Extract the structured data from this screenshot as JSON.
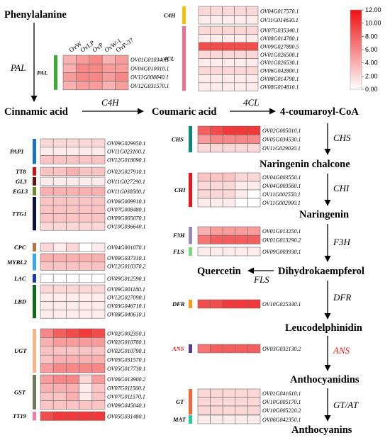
{
  "colors": {
    "low": "#ffffff",
    "high": "#ee1111",
    "grid": "#6a6a6a",
    "ans_label": "#e8201e"
  },
  "compounds": {
    "phenylalanine": "Phenylalanine",
    "cinnamic": "Cinnamic acid",
    "coumaric": "Coumaric acid",
    "coumaroyl": "4-coumaroyl-CoA",
    "naringenin_chalcone": "Naringenin chalcone",
    "naringenin": "Naringenin",
    "dihydrokaempferol": "Dihydrokaempferol",
    "quercetin": "Quercetin",
    "leucodelphinidin": "Leucodelphinidin",
    "anthocyanidins": "Anthocyanidins",
    "anthocyanins": "Anthocyanins"
  },
  "enzymes": {
    "pal": "PAL",
    "c4h": "C4H",
    "fourcl": "4CL",
    "chs": "CHS",
    "chi": "CHI",
    "f3h": "F3H",
    "fls": "FLS",
    "dfr": "DFR",
    "ans": "ANS",
    "gt_at": "GT/AT"
  },
  "columns": [
    "OvW",
    "OvLP",
    "OvP",
    "OvW-1",
    "OvP-37"
  ],
  "legend": {
    "ticks": [
      "12.00",
      "10.00",
      "8.00",
      "6.00",
      "4.00",
      "2.00",
      "0.00"
    ],
    "min": 0,
    "max": 12
  },
  "chart_data": {
    "type": "heatmap",
    "columns": [
      "OvW",
      "OvLP",
      "OvP",
      "OvW-1",
      "OvP-37"
    ],
    "value_range": [
      0,
      12
    ],
    "groups": [
      {
        "label": "PAL",
        "color": "#3aa935",
        "genes": [
          {
            "id": "OV01G010340.1",
            "values": [
              4,
              5,
              6,
              4,
              5
            ]
          },
          {
            "id": "OV04G010010.1",
            "values": [
              4,
              6,
              6,
              5,
              5
            ]
          },
          {
            "id": "OV11G008840.1",
            "values": [
              5,
              6,
              6,
              5,
              6
            ]
          },
          {
            "id": "OV12G031570.1",
            "values": [
              4,
              5,
              5,
              4,
              5
            ]
          }
        ]
      },
      {
        "label": "C4H",
        "color": "#f5c000",
        "genes": [
          {
            "id": "OV04G017570.1",
            "values": [
              2,
              2,
              2,
              2,
              2
            ]
          },
          {
            "id": "OV11G014630.1",
            "values": [
              1,
              1,
              1,
              1,
              1
            ]
          }
        ]
      },
      {
        "label": "4CL",
        "color": "#f07090",
        "genes": [
          {
            "id": "OV07G035340.1",
            "values": [
              2,
              2,
              2,
              2,
              2
            ]
          },
          {
            "id": "OV08G014780.1",
            "values": [
              1,
              1,
              1,
              1,
              1
            ]
          },
          {
            "id": "OV09G027890.5",
            "values": [
              9,
              9,
              9,
              9,
              9
            ]
          },
          {
            "id": "OV01G026500.1",
            "values": [
              2,
              2,
              2,
              2,
              2
            ]
          },
          {
            "id": "OV01G026530.1",
            "values": [
              1,
              1,
              1,
              1,
              1
            ]
          },
          {
            "id": "OV06G042800.1",
            "values": [
              2,
              2,
              2,
              2,
              2
            ]
          },
          {
            "id": "OV08G014790.1",
            "values": [
              1,
              1,
              1,
              1,
              1
            ]
          },
          {
            "id": "OV08G014810.1",
            "values": [
              1,
              1,
              1,
              1,
              1
            ]
          }
        ]
      },
      {
        "label": "PAP1",
        "color": "#1a73c8",
        "genes": [
          {
            "id": "OV09G029950.1",
            "values": [
              2,
              2,
              2,
              2,
              2
            ]
          },
          {
            "id": "OV11G023100.1",
            "values": [
              1,
              1,
              1,
              1,
              1
            ]
          },
          {
            "id": "OV12G018090.1",
            "values": [
              3,
              3,
              3,
              3,
              3
            ]
          }
        ]
      },
      {
        "label": "TT8",
        "color": "#cc1111",
        "genes": [
          {
            "id": "OV02G027910.1",
            "values": [
              3,
              3,
              4,
              3,
              3
            ]
          }
        ]
      },
      {
        "label": "GL3",
        "color": "#6b0f0f",
        "genes": [
          {
            "id": "OV11G027290.1",
            "values": [
              1,
              1,
              1,
              1,
              1
            ]
          }
        ]
      },
      {
        "label": "EGL3",
        "color": "#6b8e23",
        "genes": [
          {
            "id": "OV11G038500.1",
            "values": [
              4,
              4,
              4,
              4,
              4
            ]
          }
        ]
      },
      {
        "label": "TTG1",
        "color": "#0b1240",
        "genes": [
          {
            "id": "OV06G009910.1",
            "values": [
              3,
              3,
              3,
              3,
              3
            ]
          },
          {
            "id": "OV07G008480.1",
            "values": [
              3,
              3,
              3,
              3,
              3
            ]
          },
          {
            "id": "OV09G005070.1",
            "values": [
              3,
              3,
              3,
              3,
              3
            ]
          },
          {
            "id": "OV10G036640.1",
            "values": [
              2,
              2,
              2,
              2,
              2
            ]
          }
        ]
      },
      {
        "label": "CPC",
        "color": "#b8733a",
        "genes": [
          {
            "id": "OV04G001070.1",
            "values": [
              2,
              1,
              2,
              0,
              1
            ]
          }
        ]
      },
      {
        "label": "MYBL2",
        "color": "#3aa8f0",
        "genes": [
          {
            "id": "OV09G037310.1",
            "values": [
              4,
              4,
              4,
              4,
              4
            ]
          },
          {
            "id": "OV12G010370.2",
            "values": [
              3,
              3,
              3,
              3,
              3
            ]
          }
        ]
      },
      {
        "label": "LAC",
        "color": "#1a3aa8",
        "genes": [
          {
            "id": "OV09G012590.1",
            "values": [
              0,
              0,
              0,
              0,
              0
            ]
          }
        ]
      },
      {
        "label": "LBD",
        "color": "#0f6a1a",
        "genes": [
          {
            "id": "OV09G001180.1",
            "values": [
              2,
              2,
              2,
              2,
              2
            ]
          },
          {
            "id": "OV12G027090.1",
            "values": [
              1,
              1,
              1,
              1,
              1
            ]
          },
          {
            "id": "OV03G046710.1",
            "values": [
              1,
              1,
              1,
              1,
              1
            ]
          },
          {
            "id": "OV08G040610.1",
            "values": [
              1,
              1,
              1,
              1,
              1
            ]
          }
        ]
      },
      {
        "label": "UGT",
        "color": "#f5b88a",
        "genes": [
          {
            "id": "OV02G002350.1",
            "values": [
              6,
              8,
              9,
              10,
              9
            ]
          },
          {
            "id": "OV02G010780.1",
            "values": [
              4,
              5,
              5,
              5,
              5
            ]
          },
          {
            "id": "OV02G010790.1",
            "values": [
              3,
              3,
              3,
              3,
              3
            ]
          },
          {
            "id": "OV05G031570.1",
            "values": [
              3,
              4,
              4,
              4,
              4
            ]
          },
          {
            "id": "OV05G017730.1",
            "values": [
              5,
              6,
              6,
              6,
              6
            ]
          }
        ]
      },
      {
        "label": "GST",
        "color": "#6b7a5a",
        "genes": [
          {
            "id": "OV06G013900.2",
            "values": [
              5,
              6,
              6,
              2,
              5
            ]
          },
          {
            "id": "OV07G011560.1",
            "values": [
              4,
              4,
              4,
              1,
              3
            ]
          },
          {
            "id": "OV07G011570.1",
            "values": [
              3,
              3,
              4,
              1,
              3
            ]
          },
          {
            "id": "OV09G045040.1",
            "values": [
              3,
              3,
              3,
              3,
              3
            ]
          }
        ]
      },
      {
        "label": "TT19",
        "color": "#f07aa0",
        "genes": [
          {
            "id": "OV05G031480.1",
            "values": [
              9,
              10,
              10,
              10,
              10
            ]
          }
        ]
      },
      {
        "label": "CHS",
        "color": "#0f8a7a",
        "genes": [
          {
            "id": "OV02G005010.1",
            "values": [
              8,
              9,
              10,
              10,
              10
            ]
          },
          {
            "id": "OV05G034530.1",
            "values": [
              5,
              6,
              6,
              6,
              6
            ]
          },
          {
            "id": "OV11G029020.1",
            "values": [
              2,
              2,
              2,
              2,
              2
            ]
          }
        ]
      },
      {
        "label": "CHI",
        "color": "#e81818",
        "genes": [
          {
            "id": "OV04G003550.1",
            "values": [
              3,
              3,
              3,
              2,
              2
            ]
          },
          {
            "id": "OV04G003560.1",
            "values": [
              2,
              2,
              2,
              1,
              1
            ]
          },
          {
            "id": "OV11G002550.1",
            "values": [
              2,
              2,
              2,
              1,
              0
            ]
          },
          {
            "id": "OV11G002900.1",
            "values": [
              1,
              1,
              1,
              0,
              0
            ]
          }
        ]
      },
      {
        "label": "F3H",
        "color": "#9a8ab8",
        "genes": [
          {
            "id": "OV01G013250.1",
            "values": [
              4,
              5,
              5,
              5,
              5
            ]
          },
          {
            "id": "OV01G013290.2",
            "values": [
              7,
              8,
              8,
              8,
              8
            ]
          }
        ]
      },
      {
        "label": "FLS",
        "color": "#7ed87e",
        "genes": [
          {
            "id": "OV09G003930.1",
            "values": [
              1,
              1,
              1,
              1,
              1
            ]
          }
        ]
      },
      {
        "label": "DFR",
        "color": "#f59a1a",
        "genes": [
          {
            "id": "OV10G025340.1",
            "values": [
              9,
              9,
              10,
              10,
              10
            ]
          }
        ]
      },
      {
        "label": "ANS",
        "color": "#5a3a8a",
        "genes": [
          {
            "id": "OV03G032130.2",
            "values": [
              7,
              8,
              8,
              8,
              8
            ]
          }
        ]
      },
      {
        "label": "GT",
        "color": "#f06a3a",
        "genes": [
          {
            "id": "OV01G041610.1",
            "values": [
              2,
              2,
              2,
              2,
              2
            ]
          },
          {
            "id": "OV10G005170.1",
            "values": [
              2,
              2,
              2,
              2,
              2
            ]
          },
          {
            "id": "OV10G005220.2",
            "values": [
              2,
              2,
              2,
              2,
              2
            ]
          }
        ]
      },
      {
        "label": "MAT",
        "color": "#2ac8a0",
        "genes": [
          {
            "id": "OV06G042350.1",
            "values": [
              1,
              1,
              1,
              1,
              1
            ]
          }
        ]
      }
    ]
  }
}
